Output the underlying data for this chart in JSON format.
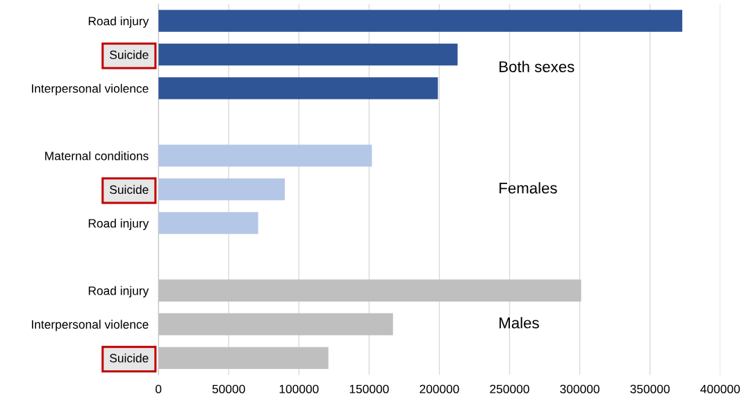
{
  "chart_data": {
    "type": "bar",
    "orientation": "horizontal",
    "categories": [
      "Road injury",
      "Suicide",
      "Interpersonal violence",
      null,
      "Maternal conditions",
      "Suicide",
      "Road injury",
      null,
      "Road injury",
      "Interpersonal violence",
      "Suicide"
    ],
    "values": [
      373000,
      213000,
      199000,
      null,
      152000,
      90000,
      71000,
      null,
      301000,
      167000,
      121000
    ],
    "colors": [
      "#2f5597",
      "#2f5597",
      "#2f5597",
      null,
      "#b4c7e7",
      "#b4c7e7",
      "#b4c7e7",
      null,
      "#bfbfbf",
      "#bfbfbf",
      "#bfbfbf"
    ],
    "xlim": [
      0,
      400000
    ],
    "xticks": [
      0,
      50000,
      100000,
      150000,
      200000,
      250000,
      300000,
      350000,
      400000
    ],
    "grid": "x",
    "annotations": [
      "Both sexes",
      "Females",
      "Males"
    ]
  }
}
